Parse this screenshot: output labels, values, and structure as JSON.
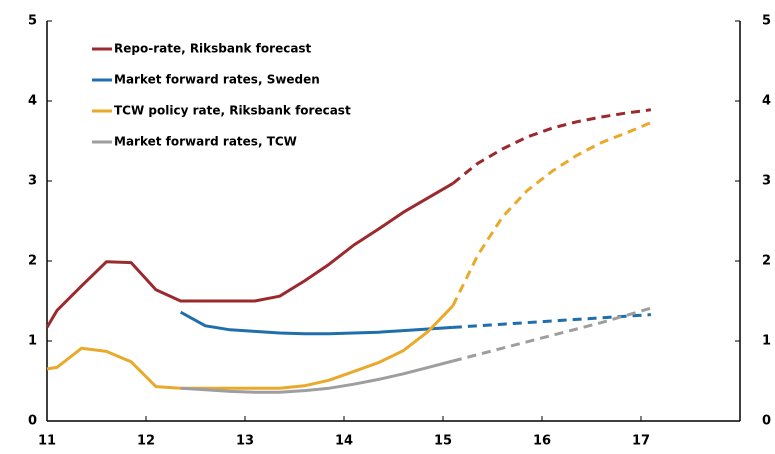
{
  "chart_data": {
    "type": "line",
    "x": [
      11.0,
      11.1,
      11.35,
      11.6,
      11.85,
      12.1,
      12.35,
      12.6,
      12.85,
      13.1,
      13.35,
      13.6,
      13.85,
      14.1,
      14.35,
      14.6,
      14.85,
      15.1,
      15.35,
      15.6,
      15.85,
      16.1,
      16.35,
      16.6,
      16.85,
      17.1
    ],
    "series": [
      {
        "name": "Repo-rate, Riksbank forecast",
        "color": "#9b2a2f",
        "values": [
          1.17,
          1.38,
          1.69,
          1.99,
          1.98,
          1.64,
          1.5,
          1.5,
          1.5,
          1.5,
          1.56,
          1.75,
          1.96,
          2.2,
          2.4,
          2.61,
          2.79,
          2.97,
          null,
          null,
          null,
          null,
          null,
          null,
          null,
          null
        ],
        "forecast_values": [
          null,
          null,
          null,
          null,
          null,
          null,
          null,
          null,
          null,
          null,
          null,
          null,
          null,
          null,
          null,
          null,
          null,
          2.97,
          3.22,
          3.4,
          3.55,
          3.66,
          3.74,
          3.8,
          3.85,
          3.89
        ]
      },
      {
        "name": "Market forward rates, Sweden",
        "color": "#1f6fad",
        "values": [
          null,
          null,
          null,
          null,
          null,
          null,
          1.36,
          1.19,
          1.14,
          1.12,
          1.1,
          1.09,
          1.09,
          1.1,
          1.11,
          1.13,
          1.15,
          1.17,
          null,
          null,
          null,
          null,
          null,
          null,
          null,
          null
        ],
        "forecast_values": [
          null,
          null,
          null,
          null,
          null,
          null,
          null,
          null,
          null,
          null,
          null,
          null,
          null,
          null,
          null,
          null,
          null,
          1.17,
          1.19,
          1.21,
          1.23,
          1.25,
          1.27,
          1.29,
          1.31,
          1.33
        ]
      },
      {
        "name": "TCW policy rate, Riksbank forecast",
        "color": "#e9aa2b",
        "values": [
          0.65,
          0.67,
          0.91,
          0.87,
          0.74,
          0.43,
          0.41,
          0.41,
          0.41,
          0.41,
          0.41,
          0.44,
          0.51,
          0.62,
          0.73,
          0.88,
          1.12,
          1.44,
          null,
          null,
          null,
          null,
          null,
          null,
          null,
          null
        ],
        "forecast_values": [
          null,
          null,
          null,
          null,
          null,
          null,
          null,
          null,
          null,
          null,
          null,
          null,
          null,
          null,
          null,
          null,
          null,
          1.44,
          2.07,
          2.55,
          2.88,
          3.12,
          3.32,
          3.48,
          3.6,
          3.73
        ]
      },
      {
        "name": "Market forward rates, TCW",
        "color": "#9e9e9e",
        "values": [
          null,
          null,
          null,
          null,
          null,
          null,
          0.41,
          0.39,
          0.37,
          0.36,
          0.36,
          0.38,
          0.41,
          0.46,
          0.52,
          0.59,
          0.67,
          0.75,
          null,
          null,
          null,
          null,
          null,
          null,
          null,
          null
        ],
        "forecast_values": [
          null,
          null,
          null,
          null,
          null,
          null,
          null,
          null,
          null,
          null,
          null,
          null,
          null,
          null,
          null,
          null,
          null,
          0.75,
          0.83,
          0.91,
          0.99,
          1.07,
          1.15,
          1.23,
          1.32,
          1.41
        ]
      }
    ],
    "xlim": [
      11,
      18
    ],
    "xticks": [
      11,
      12,
      13,
      14,
      15,
      16,
      17
    ],
    "ylim": [
      0,
      5
    ],
    "yticks": [
      0,
      1,
      2,
      3,
      4,
      5
    ],
    "y2lim": [
      0,
      5
    ],
    "y2ticks": [
      0,
      1,
      2,
      3,
      4,
      5
    ],
    "grid": false,
    "legend": "top-left"
  }
}
